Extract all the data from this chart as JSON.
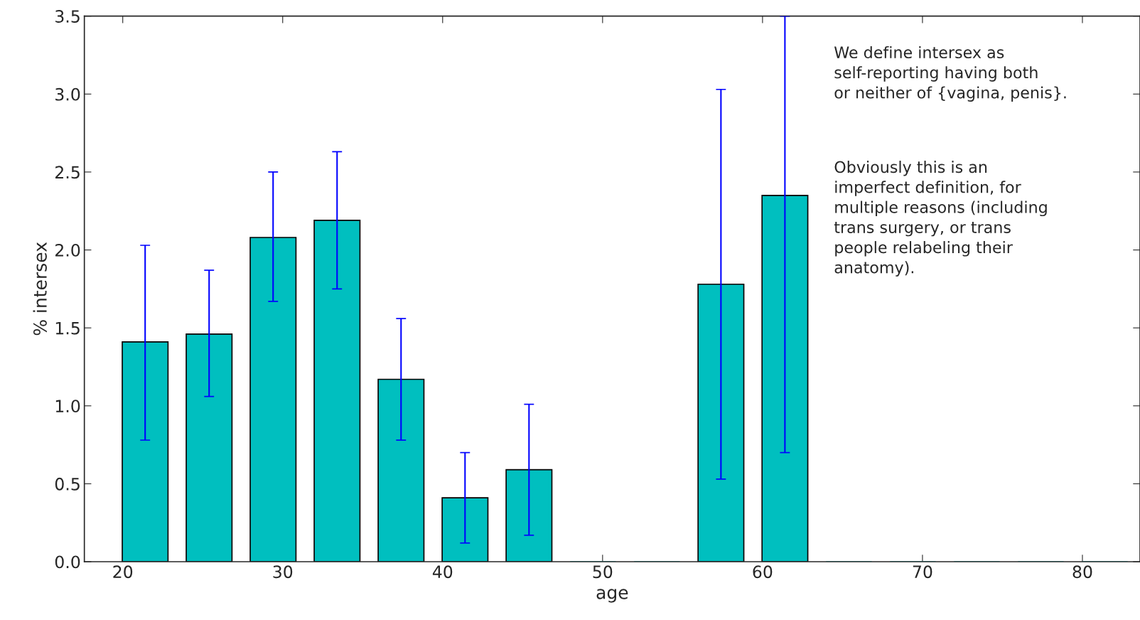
{
  "chart_data": {
    "type": "bar",
    "xlabel": "age",
    "ylabel": "% intersex",
    "x": [
      21.4,
      25.4,
      29.4,
      33.4,
      37.4,
      41.4,
      45.4,
      49.4,
      53.4,
      57.4,
      61.4,
      65.4,
      69.4,
      73.4,
      77.4,
      81.4
    ],
    "values": [
      1.41,
      1.46,
      2.08,
      2.19,
      1.17,
      0.41,
      0.59,
      0,
      0,
      1.78,
      2.35,
      0,
      0,
      0,
      0,
      0
    ],
    "errors": [
      [
        0.78,
        2.03
      ],
      [
        1.06,
        1.87
      ],
      [
        1.67,
        2.5
      ],
      [
        1.75,
        2.63
      ],
      [
        0.78,
        1.56
      ],
      [
        0.12,
        0.7
      ],
      [
        0.17,
        1.01
      ],
      null,
      null,
      [
        0.53,
        3.03
      ],
      [
        0.7,
        3.5
      ],
      null,
      null,
      null,
      null,
      null
    ],
    "color": "#00bfbf",
    "xlim": [
      17.6,
      83.6
    ],
    "xticks": [
      20,
      30,
      40,
      50,
      60,
      70,
      80
    ],
    "ylim": [
      0,
      3.5
    ],
    "yticks": [
      {
        "value": 0,
        "label": "0.0"
      },
      {
        "value": 0.5,
        "label": "0.5"
      },
      {
        "value": 1,
        "label": "1.0"
      },
      {
        "value": 1.5,
        "label": "1.5"
      },
      {
        "value": 2,
        "label": "2.0"
      },
      {
        "value": 2.5,
        "label": "2.5"
      },
      {
        "value": 3,
        "label": "3.0"
      },
      {
        "value": 3.5,
        "label": "3.5"
      }
    ],
    "grid": false,
    "annotations": [
      "We define intersex as\nself-reporting having both\nor neither of {vagina, penis}.",
      "Obviously this is an\nimperfect definition, for\nmultiple reasons (including\ntrans surgery, or trans\npeople relabeling their\nanatomy)."
    ]
  }
}
